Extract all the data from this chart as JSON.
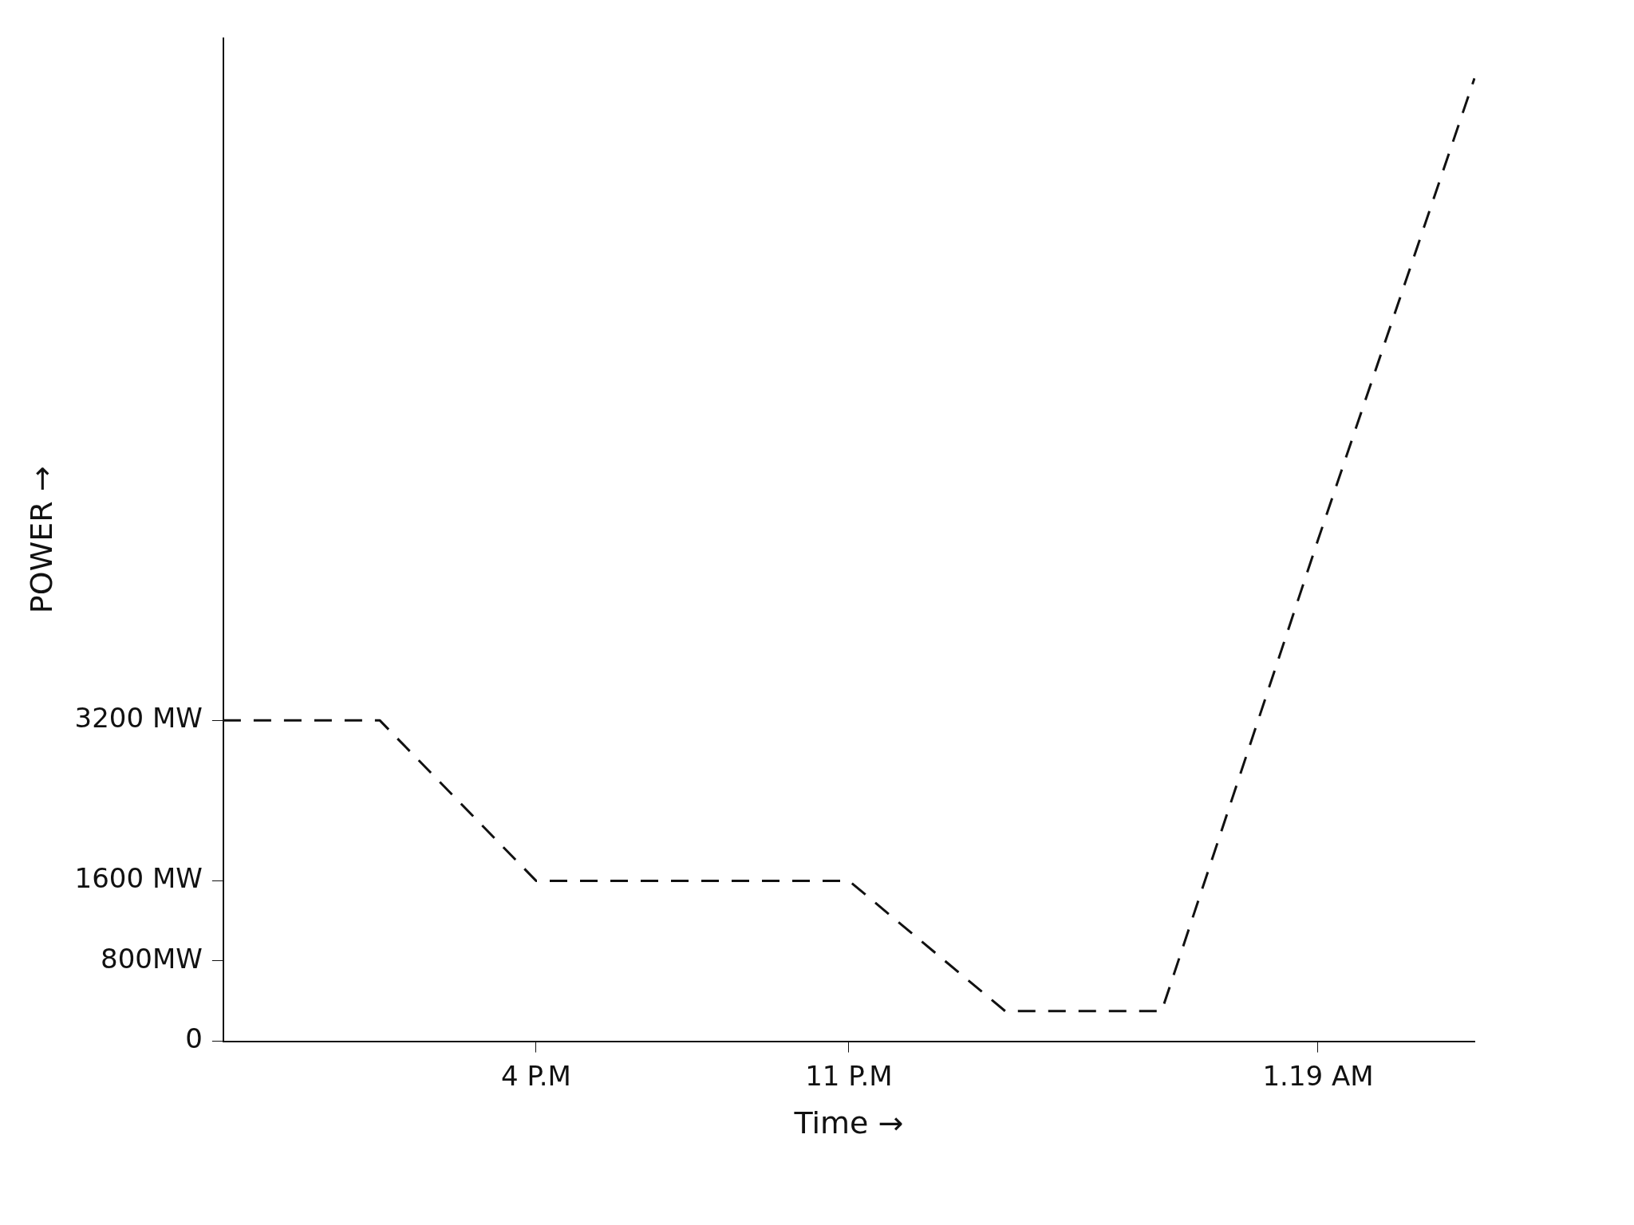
{
  "chart_data": {
    "type": "line",
    "xlabel": "Time →",
    "ylabel": "POWER →",
    "categories": [
      null,
      null,
      "4 P.M",
      null,
      "11 P.M",
      null,
      null,
      "1.19 AM",
      null
    ],
    "series": [
      {
        "color": "#111111",
        "values": [
          3200,
          3200,
          1600,
          1600,
          1600,
          300,
          300,
          5000,
          9600
        ]
      }
    ],
    "ylim": [
      0,
      10000
    ],
    "yticks": [
      0,
      {
        "value": 800,
        "label": "800MW"
      },
      {
        "value": 1600,
        "label": "1600 MW"
      },
      {
        "value": 3200,
        "label": "3200 MW"
      }
    ],
    "grid": false,
    "legend": false,
    "marker": "none",
    "line_style": "dashed"
  }
}
